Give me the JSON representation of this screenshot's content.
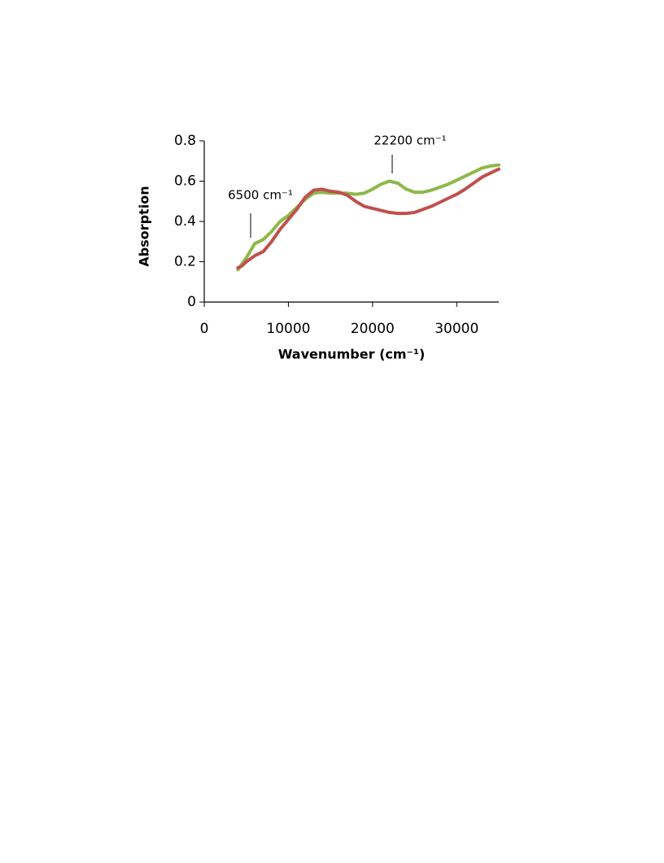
{
  "chart_data": {
    "type": "line",
    "x_label": "Wavenumber (cm⁻¹)",
    "y_label": "Absorption",
    "annotations": [
      "6500 cm⁻¹",
      "22200 cm⁻¹"
    ],
    "x": [
      4000,
      4500,
      5000,
      6000,
      7000,
      8000,
      9000,
      10000,
      11000,
      12000,
      13000,
      14000,
      15000,
      16000,
      17000,
      18000,
      19000,
      20000,
      21000,
      22000,
      23000,
      24000,
      25000,
      26000,
      27000,
      28000,
      29000,
      30000,
      31000,
      32000,
      33000,
      34000,
      35000
    ],
    "series": [
      {
        "color": "#8db84a",
        "values": [
          0.16,
          0.19,
          0.22,
          0.29,
          0.31,
          0.35,
          0.4,
          0.43,
          0.47,
          0.51,
          0.54,
          0.545,
          0.54,
          0.54,
          0.54,
          0.535,
          0.54,
          0.56,
          0.585,
          0.6,
          0.59,
          0.56,
          0.545,
          0.545,
          0.555,
          0.57,
          0.585,
          0.605,
          0.625,
          0.645,
          0.665,
          0.675,
          0.68
        ]
      },
      {
        "color": "#c0504d",
        "values": [
          0.17,
          0.18,
          0.2,
          0.23,
          0.25,
          0.3,
          0.36,
          0.41,
          0.46,
          0.52,
          0.555,
          0.56,
          0.55,
          0.545,
          0.53,
          0.5,
          0.475,
          0.465,
          0.455,
          0.445,
          0.44,
          0.44,
          0.445,
          0.46,
          0.475,
          0.495,
          0.515,
          0.535,
          0.56,
          0.59,
          0.62,
          0.64,
          0.66
        ]
      }
    ],
    "xlim": [
      0,
      35000
    ],
    "ylim": [
      0,
      0.8
    ],
    "xticks": [
      0,
      10000,
      20000,
      30000
    ],
    "yticks": [
      0,
      0.2,
      0.4,
      0.6,
      0.8
    ],
    "grid": false
  }
}
